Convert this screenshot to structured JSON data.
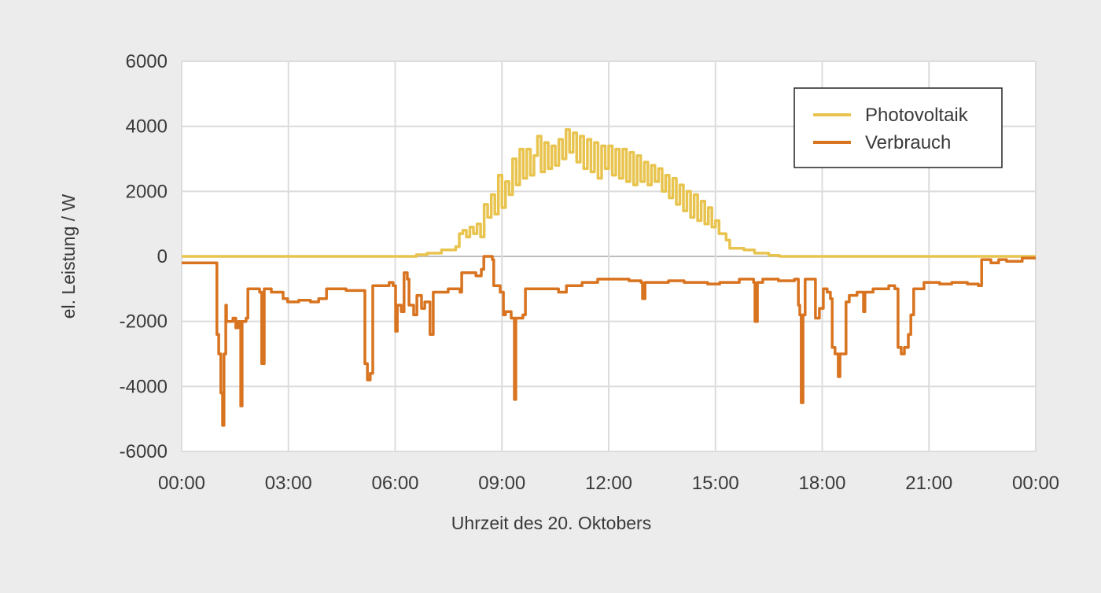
{
  "chart_data": {
    "type": "line",
    "title": "",
    "xlabel": "Uhrzeit des 20. Oktobers",
    "ylabel": "el. Leistung / W",
    "xlim": [
      0,
      24
    ],
    "ylim": [
      -6000,
      6000
    ],
    "x_unit": "hours",
    "x_ticks": [
      0,
      3,
      6,
      9,
      12,
      15,
      18,
      21,
      24
    ],
    "x_tick_labels": [
      "00:00",
      "03:00",
      "06:00",
      "09:00",
      "12:00",
      "15:00",
      "18:00",
      "21:00",
      "00:00"
    ],
    "y_ticks": [
      6000,
      4000,
      2000,
      0,
      -2000,
      -4000,
      -6000
    ],
    "y_tick_labels": [
      "6000",
      "4000",
      "2000",
      "0",
      "-2000",
      "-4000",
      "-6000"
    ],
    "grid": true,
    "legend_position": "top-right",
    "background_color": "#ececec",
    "series": [
      {
        "name": "Photovoltaik",
        "color": "#e8c44f",
        "points": [
          [
            0,
            0
          ],
          [
            6.3,
            0
          ],
          [
            6.6,
            50
          ],
          [
            6.9,
            100
          ],
          [
            7.3,
            200
          ],
          [
            7.7,
            300
          ],
          [
            7.8,
            700
          ],
          [
            7.9,
            800
          ],
          [
            8.0,
            600
          ],
          [
            8.1,
            900
          ],
          [
            8.2,
            700
          ],
          [
            8.3,
            1000
          ],
          [
            8.4,
            600
          ],
          [
            8.5,
            1600
          ],
          [
            8.6,
            1200
          ],
          [
            8.7,
            1900
          ],
          [
            8.8,
            1300
          ],
          [
            8.9,
            2500
          ],
          [
            9.0,
            1500
          ],
          [
            9.1,
            2300
          ],
          [
            9.2,
            1900
          ],
          [
            9.3,
            3000
          ],
          [
            9.4,
            2200
          ],
          [
            9.5,
            3300
          ],
          [
            9.6,
            2400
          ],
          [
            9.7,
            3300
          ],
          [
            9.8,
            2500
          ],
          [
            9.9,
            3100
          ],
          [
            10.0,
            3700
          ],
          [
            10.1,
            2600
          ],
          [
            10.2,
            3500
          ],
          [
            10.3,
            2700
          ],
          [
            10.4,
            3400
          ],
          [
            10.5,
            2800
          ],
          [
            10.6,
            3600
          ],
          [
            10.7,
            3000
          ],
          [
            10.8,
            3900
          ],
          [
            10.9,
            3200
          ],
          [
            11.0,
            3800
          ],
          [
            11.1,
            2900
          ],
          [
            11.2,
            3700
          ],
          [
            11.3,
            2700
          ],
          [
            11.4,
            3600
          ],
          [
            11.5,
            2600
          ],
          [
            11.6,
            3500
          ],
          [
            11.7,
            2400
          ],
          [
            11.8,
            3400
          ],
          [
            11.9,
            2700
          ],
          [
            12.0,
            3400
          ],
          [
            12.1,
            2500
          ],
          [
            12.2,
            3300
          ],
          [
            12.3,
            2400
          ],
          [
            12.4,
            3300
          ],
          [
            12.5,
            2300
          ],
          [
            12.6,
            3200
          ],
          [
            12.7,
            2200
          ],
          [
            12.8,
            3100
          ],
          [
            12.9,
            2300
          ],
          [
            13.0,
            2900
          ],
          [
            13.1,
            2200
          ],
          [
            13.2,
            2800
          ],
          [
            13.3,
            2300
          ],
          [
            13.4,
            2700
          ],
          [
            13.5,
            2000
          ],
          [
            13.6,
            2500
          ],
          [
            13.7,
            1800
          ],
          [
            13.8,
            2400
          ],
          [
            13.9,
            1600
          ],
          [
            14.0,
            2200
          ],
          [
            14.1,
            1400
          ],
          [
            14.2,
            2000
          ],
          [
            14.3,
            1200
          ],
          [
            14.4,
            1900
          ],
          [
            14.5,
            1100
          ],
          [
            14.6,
            1700
          ],
          [
            14.7,
            1000
          ],
          [
            14.8,
            1500
          ],
          [
            14.9,
            900
          ],
          [
            15.0,
            1100
          ],
          [
            15.1,
            700
          ],
          [
            15.3,
            500
          ],
          [
            15.4,
            250
          ],
          [
            15.8,
            200
          ],
          [
            16.1,
            100
          ],
          [
            16.5,
            30
          ],
          [
            16.8,
            0
          ],
          [
            24,
            0
          ]
        ]
      },
      {
        "name": "Verbrauch",
        "color": "#d8731f",
        "points": [
          [
            0,
            -200
          ],
          [
            0.99,
            -2400
          ],
          [
            1.04,
            -3000
          ],
          [
            1.1,
            -4200
          ],
          [
            1.15,
            -5200
          ],
          [
            1.19,
            -3000
          ],
          [
            1.24,
            -1500
          ],
          [
            1.26,
            -2000
          ],
          [
            1.44,
            -1900
          ],
          [
            1.52,
            -2200
          ],
          [
            1.59,
            -2000
          ],
          [
            1.66,
            -4600
          ],
          [
            1.7,
            -2000
          ],
          [
            1.81,
            -1900
          ],
          [
            1.86,
            -1000
          ],
          [
            2.19,
            -1100
          ],
          [
            2.25,
            -3300
          ],
          [
            2.32,
            -1000
          ],
          [
            2.52,
            -1100
          ],
          [
            2.85,
            -1300
          ],
          [
            2.98,
            -1400
          ],
          [
            3.29,
            -1350
          ],
          [
            3.62,
            -1400
          ],
          [
            3.85,
            -1300
          ],
          [
            4.07,
            -1000
          ],
          [
            4.62,
            -1050
          ],
          [
            5.1,
            -1050
          ],
          [
            5.15,
            -3300
          ],
          [
            5.22,
            -3800
          ],
          [
            5.3,
            -3600
          ],
          [
            5.37,
            -900
          ],
          [
            5.83,
            -800
          ],
          [
            5.94,
            -900
          ],
          [
            6.01,
            -2300
          ],
          [
            6.06,
            -1500
          ],
          [
            6.17,
            -1700
          ],
          [
            6.25,
            -500
          ],
          [
            6.34,
            -700
          ],
          [
            6.39,
            -1500
          ],
          [
            6.52,
            -1800
          ],
          [
            6.61,
            -1200
          ],
          [
            6.74,
            -1600
          ],
          [
            6.83,
            -1400
          ],
          [
            6.98,
            -2400
          ],
          [
            7.07,
            -1100
          ],
          [
            7.49,
            -1000
          ],
          [
            7.82,
            -1100
          ],
          [
            7.87,
            -500
          ],
          [
            8.27,
            -600
          ],
          [
            8.42,
            -400
          ],
          [
            8.49,
            0
          ],
          [
            8.73,
            -100
          ],
          [
            8.77,
            -900
          ],
          [
            8.95,
            -1100
          ],
          [
            9.04,
            -1800
          ],
          [
            9.1,
            -1700
          ],
          [
            9.26,
            -1900
          ],
          [
            9.35,
            -4400
          ],
          [
            9.39,
            -1900
          ],
          [
            9.59,
            -1800
          ],
          [
            9.66,
            -1000
          ],
          [
            10.36,
            -1000
          ],
          [
            10.59,
            -1100
          ],
          [
            10.81,
            -900
          ],
          [
            11.25,
            -800
          ],
          [
            11.69,
            -700
          ],
          [
            12.57,
            -750
          ],
          [
            12.91,
            -800
          ],
          [
            12.95,
            -1300
          ],
          [
            13.02,
            -800
          ],
          [
            13.68,
            -750
          ],
          [
            14.12,
            -800
          ],
          [
            14.78,
            -850
          ],
          [
            15.12,
            -800
          ],
          [
            15.67,
            -700
          ],
          [
            16.07,
            -800
          ],
          [
            16.11,
            -2000
          ],
          [
            16.18,
            -800
          ],
          [
            16.33,
            -700
          ],
          [
            16.77,
            -750
          ],
          [
            17.22,
            -700
          ],
          [
            17.33,
            -1500
          ],
          [
            17.37,
            -1800
          ],
          [
            17.41,
            -4500
          ],
          [
            17.46,
            -1800
          ],
          [
            17.52,
            -700
          ],
          [
            17.77,
            -700
          ],
          [
            17.81,
            -1900
          ],
          [
            17.92,
            -1600
          ],
          [
            18.03,
            -1000
          ],
          [
            18.14,
            -1100
          ],
          [
            18.23,
            -1300
          ],
          [
            18.28,
            -2800
          ],
          [
            18.36,
            -3000
          ],
          [
            18.45,
            -3700
          ],
          [
            18.5,
            -3000
          ],
          [
            18.63,
            -3000
          ],
          [
            18.67,
            -1400
          ],
          [
            18.76,
            -1200
          ],
          [
            18.98,
            -1100
          ],
          [
            19.16,
            -1700
          ],
          [
            19.2,
            -1100
          ],
          [
            19.43,
            -1000
          ],
          [
            19.87,
            -900
          ],
          [
            20.04,
            -1000
          ],
          [
            20.13,
            -2800
          ],
          [
            20.22,
            -3000
          ],
          [
            20.31,
            -2800
          ],
          [
            20.42,
            -2400
          ],
          [
            20.49,
            -1800
          ],
          [
            20.57,
            -1000
          ],
          [
            20.86,
            -800
          ],
          [
            21.3,
            -850
          ],
          [
            21.64,
            -800
          ],
          [
            22.08,
            -850
          ],
          [
            22.39,
            -900
          ],
          [
            22.48,
            -100
          ],
          [
            22.74,
            -200
          ],
          [
            22.96,
            -100
          ],
          [
            23.18,
            -150
          ],
          [
            23.51,
            -150
          ],
          [
            23.62,
            -50
          ],
          [
            24,
            -50
          ]
        ]
      }
    ]
  }
}
